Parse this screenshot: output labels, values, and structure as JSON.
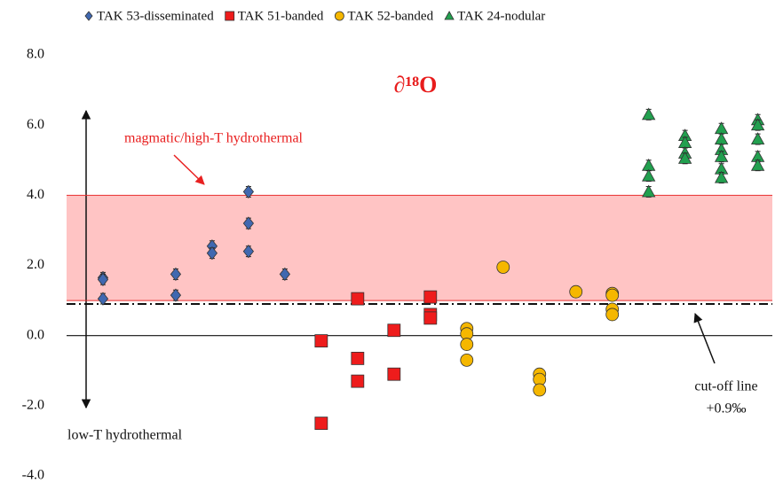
{
  "chart_data": {
    "type": "scatter",
    "title": "∂¹⁸O",
    "xlim": [
      0,
      19.4
    ],
    "ylim": [
      -4,
      8
    ],
    "yticks": [
      {
        "value": -4,
        "label": "-4.0"
      },
      {
        "value": -2,
        "label": "-2.0"
      },
      {
        "value": 0,
        "label": "0.0"
      },
      {
        "value": 2,
        "label": "2.0"
      },
      {
        "value": 4,
        "label": "4.0"
      },
      {
        "value": 6,
        "label": "6.0"
      },
      {
        "value": 8,
        "label": "8.0"
      }
    ],
    "band": {
      "from": 1,
      "to": 4,
      "color": "#ffc4c4",
      "edge": "#e83030"
    },
    "cutoff": 0.9,
    "annotations": [
      "magmatic/high-T hydrothermal",
      "low-T hydrothermal",
      "cut-off line",
      "+0.9‰"
    ],
    "series": [
      {
        "name": "TAK 53-disseminated",
        "color": "#4068b0",
        "marker": "diamond",
        "error": 0.15,
        "x": [
          1,
          1,
          1,
          3,
          3,
          4,
          4,
          5,
          5,
          5,
          6
        ],
        "values": [
          1.65,
          1.6,
          1.05,
          1.75,
          1.15,
          2.55,
          2.35,
          4.1,
          3.2,
          2.4,
          1.75
        ]
      },
      {
        "name": "TAK 51-banded",
        "color": "#ee1c1c",
        "marker": "square",
        "error": 0.15,
        "x": [
          7,
          7,
          8,
          8,
          8,
          9,
          9,
          10,
          10,
          10
        ],
        "values": [
          -0.15,
          -2.5,
          1.05,
          -0.65,
          -1.3,
          0.15,
          -1.1,
          1.1,
          0.6,
          0.5
        ]
      },
      {
        "name": "TAK 52-banded",
        "color": "#f5b700",
        "marker": "circle",
        "error": 0.15,
        "x": [
          11,
          11,
          11,
          11,
          12,
          13,
          13,
          13,
          14,
          15,
          15,
          15,
          15
        ],
        "values": [
          0.2,
          0.05,
          -0.25,
          -0.7,
          1.95,
          -1.1,
          -1.25,
          -1.55,
          1.25,
          1.2,
          1.15,
          0.75,
          0.6
        ]
      },
      {
        "name": "TAK 24-nodular",
        "color": "#22a04f",
        "marker": "triangle",
        "error": 0.15,
        "x": [
          16,
          16,
          16,
          16,
          17,
          17,
          17,
          17,
          18,
          18,
          18,
          18,
          18,
          18,
          19,
          19,
          19,
          19,
          19
        ],
        "values": [
          6.3,
          4.85,
          4.55,
          4.1,
          5.7,
          5.5,
          5.2,
          5.05,
          5.9,
          5.6,
          5.3,
          5.1,
          4.75,
          4.5,
          6.15,
          6.0,
          5.6,
          5.1,
          4.85
        ]
      }
    ]
  }
}
